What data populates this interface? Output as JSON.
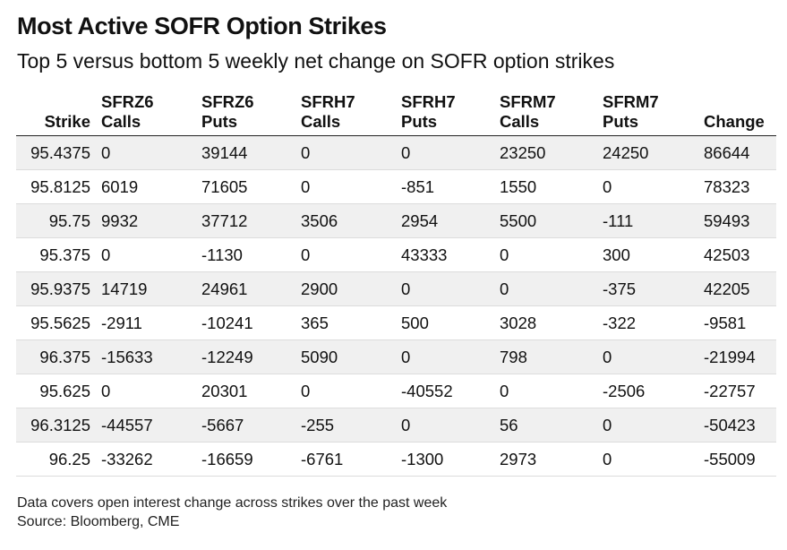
{
  "title": "Most Active SOFR Option Strikes",
  "subtitle": "Top 5 versus bottom 5 weekly net change on SOFR option strikes",
  "chart_data": {
    "type": "table",
    "columns": [
      {
        "top": "",
        "bottom": "Strike"
      },
      {
        "top": "SFRZ6",
        "bottom": "Calls"
      },
      {
        "top": "SFRZ6",
        "bottom": "Puts"
      },
      {
        "top": "SFRH7",
        "bottom": "Calls"
      },
      {
        "top": "SFRH7",
        "bottom": "Puts"
      },
      {
        "top": "SFRM7",
        "bottom": "Calls"
      },
      {
        "top": "SFRM7",
        "bottom": "Puts"
      },
      {
        "top": "",
        "bottom": "Change"
      }
    ],
    "rows": [
      [
        "95.4375",
        "0",
        "39144",
        "0",
        "0",
        "23250",
        "24250",
        "86644"
      ],
      [
        "95.8125",
        "6019",
        "71605",
        "0",
        "-851",
        "1550",
        "0",
        "78323"
      ],
      [
        "95.75",
        "9932",
        "37712",
        "3506",
        "2954",
        "5500",
        "-111",
        "59493"
      ],
      [
        "95.375",
        "0",
        "-1130",
        "0",
        "43333",
        "0",
        "300",
        "42503"
      ],
      [
        "95.9375",
        "14719",
        "24961",
        "2900",
        "0",
        "0",
        "-375",
        "42205"
      ],
      [
        "95.5625",
        "-2911",
        "-10241",
        "365",
        "500",
        "3028",
        "-322",
        "-9581"
      ],
      [
        "96.375",
        "-15633",
        "-12249",
        "5090",
        "0",
        "798",
        "0",
        "-21994"
      ],
      [
        "95.625",
        "0",
        "20301",
        "0",
        "-40552",
        "0",
        "-2506",
        "-22757"
      ],
      [
        "96.3125",
        "-44557",
        "-5667",
        "-255",
        "0",
        "56",
        "0",
        "-50423"
      ],
      [
        "96.25",
        "-33262",
        "-16659",
        "-6761",
        "-1300",
        "2973",
        "0",
        "-55009"
      ]
    ]
  },
  "footnote": {
    "line1": "Data covers open interest change across strikes over the past week",
    "line2": "Source: Bloomberg, CME"
  }
}
